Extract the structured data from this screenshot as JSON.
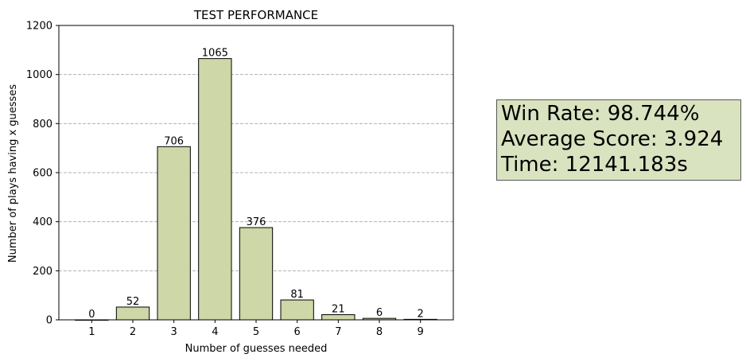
{
  "chart_data": {
    "type": "bar",
    "title": "TEST PERFORMANCE",
    "xlabel": "Number of guesses needed",
    "ylabel": "Number of plays having x guesses",
    "categories": [
      "1",
      "2",
      "3",
      "4",
      "5",
      "6",
      "7",
      "8",
      "9"
    ],
    "values": [
      0,
      52,
      706,
      1065,
      376,
      81,
      21,
      6,
      2
    ],
    "data_labels": [
      "0",
      "52",
      "706",
      "1065",
      "376",
      "81",
      "21",
      "6",
      "2"
    ],
    "ylim": [
      0,
      1200
    ],
    "yticks": [
      0,
      200,
      400,
      600,
      800,
      1000,
      1200
    ],
    "grid": "y-dashed",
    "bar_color": "#cdd7a7",
    "bar_edge_color": "#000000"
  },
  "stats": {
    "win_rate": "Win Rate: 98.744%",
    "average_score": "Average Score: 3.924",
    "time": "Time: 12141.183s"
  }
}
